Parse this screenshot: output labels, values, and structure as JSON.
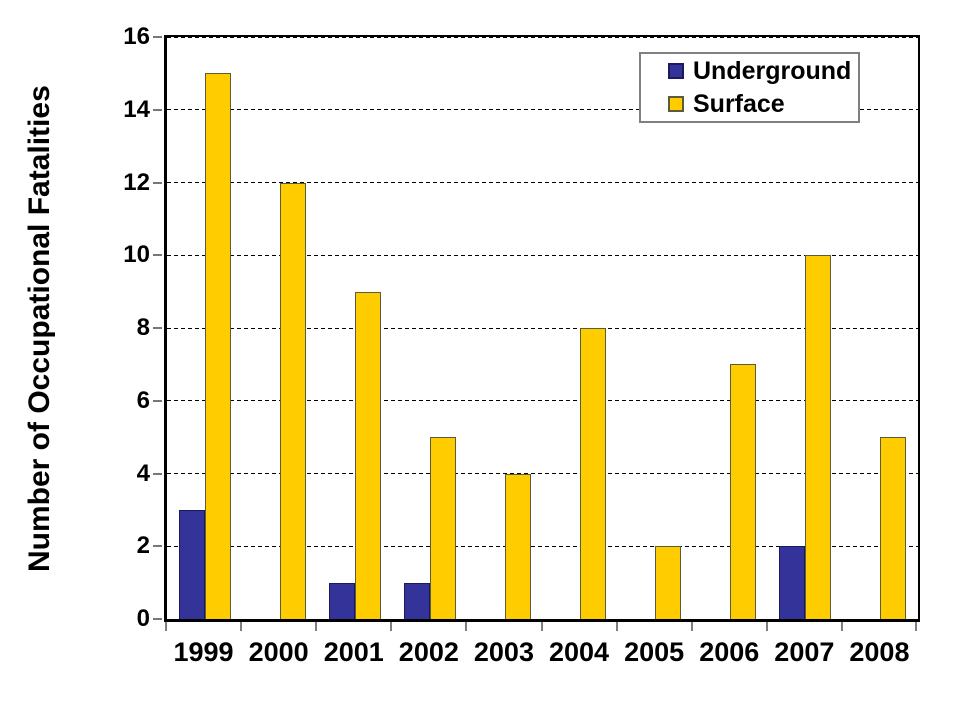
{
  "chart_data": {
    "type": "bar",
    "title": "",
    "xlabel": "",
    "ylabel": "Number of Occupational Fatalities",
    "categories": [
      "1999",
      "2000",
      "2001",
      "2002",
      "2003",
      "2004",
      "2005",
      "2006",
      "2007",
      "2008"
    ],
    "series": [
      {
        "name": "Underground",
        "color": "#333399",
        "border_color": "#1a1a5c",
        "values": [
          3,
          0,
          1,
          1,
          0,
          0,
          0,
          0,
          2,
          0
        ]
      },
      {
        "name": "Surface",
        "color": "#FFCC00",
        "border_color": "#5c5c3d",
        "values": [
          15,
          12,
          9,
          5,
          4,
          8,
          2,
          7,
          10,
          5
        ]
      }
    ],
    "ylim": [
      0,
      16
    ],
    "yticks": [
      0,
      2,
      4,
      6,
      8,
      10,
      12,
      14,
      16
    ],
    "grid": "horizontal-dashed",
    "legend_position": "top-right"
  },
  "colors": {
    "background": "#ffffff",
    "axis": "#000000",
    "gridline": "#000000",
    "tick_mark": "#808080",
    "legend_border": "#808080"
  }
}
